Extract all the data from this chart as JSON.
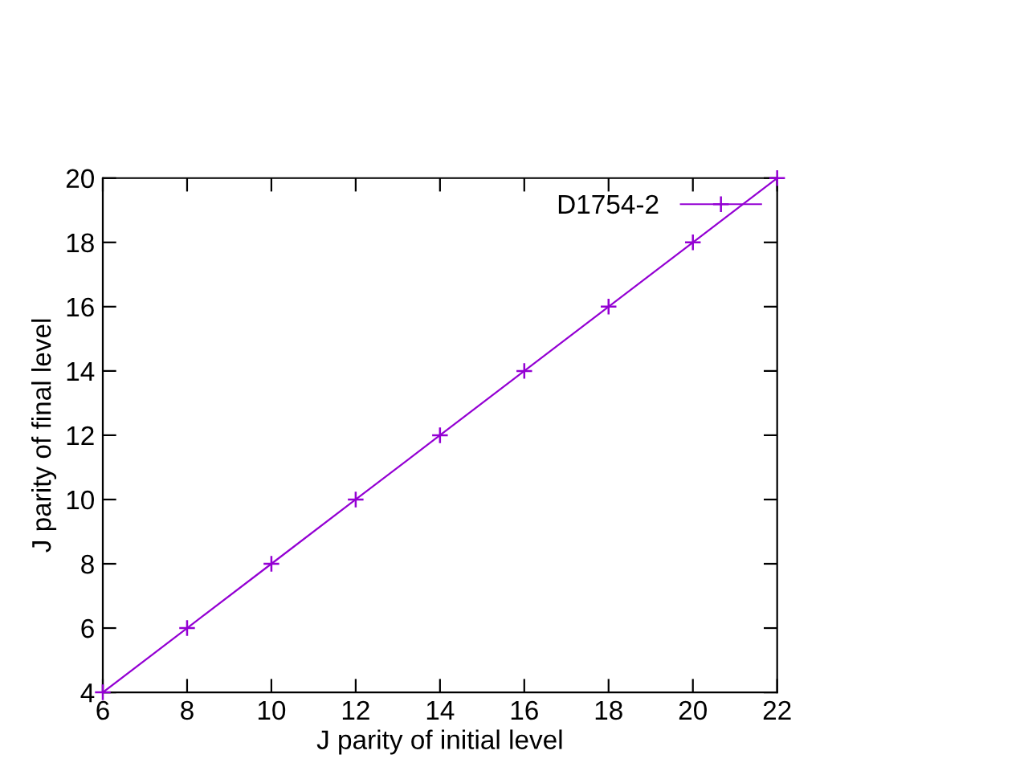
{
  "chart_data": {
    "type": "line",
    "xlabel": "J parity of initial level",
    "ylabel": "J parity of final level",
    "x": [
      6,
      8,
      10,
      12,
      14,
      16,
      18,
      20,
      22
    ],
    "series": [
      {
        "name": "D1754-2",
        "color": "#9400d3",
        "values": [
          4,
          6,
          8,
          10,
          12,
          14,
          16,
          18,
          20
        ]
      }
    ],
    "xlim": [
      6,
      22
    ],
    "xticks": [
      6,
      8,
      10,
      12,
      14,
      16,
      18,
      20,
      22
    ],
    "ylim": [
      4,
      20
    ],
    "yticks": [
      4,
      6,
      8,
      10,
      12,
      14,
      16,
      18,
      20
    ],
    "marker": "cross",
    "line_style": "solid",
    "legend": "top right",
    "grid": false
  }
}
